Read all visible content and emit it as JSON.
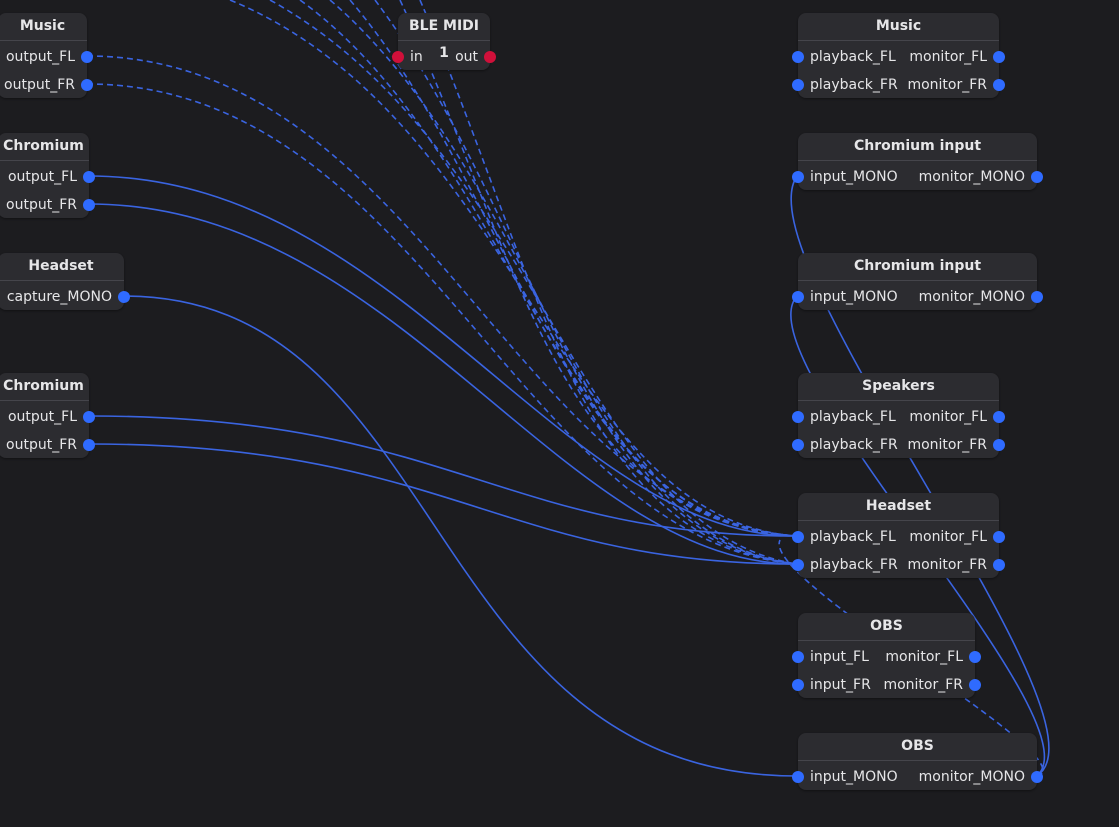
{
  "colors": {
    "background": "#1c1c1f",
    "node": "#2c2c30",
    "audio_port": "#2f6bff",
    "midi_port": "#d0103a",
    "wire": "#3a64e0"
  },
  "nodes": {
    "music_out": {
      "title": "Music",
      "ports": [
        "output_FL",
        "output_FR"
      ]
    },
    "chromium_out_1": {
      "title": "Chromium",
      "ports": [
        "output_FL",
        "output_FR"
      ]
    },
    "headset_out": {
      "title": "Headset",
      "ports": [
        "capture_MONO"
      ]
    },
    "chromium_out_2": {
      "title": "Chromium",
      "ports": [
        "output_FL",
        "output_FR"
      ]
    },
    "ble_midi": {
      "title": "BLE MIDI 1",
      "in_label": "in",
      "out_label": "out"
    },
    "music_sink": {
      "title": "Music",
      "rows": [
        [
          "playback_FL",
          "monitor_FL"
        ],
        [
          "playback_FR",
          "monitor_FR"
        ]
      ]
    },
    "chromium_input_1": {
      "title": "Chromium input",
      "rows": [
        [
          "input_MONO",
          "monitor_MONO"
        ]
      ]
    },
    "chromium_input_2": {
      "title": "Chromium input",
      "rows": [
        [
          "input_MONO",
          "monitor_MONO"
        ]
      ]
    },
    "speakers": {
      "title": "Speakers",
      "rows": [
        [
          "playback_FL",
          "monitor_FL"
        ],
        [
          "playback_FR",
          "monitor_FR"
        ]
      ]
    },
    "headset_sink": {
      "title": "Headset",
      "rows": [
        [
          "playback_FL",
          "monitor_FL"
        ],
        [
          "playback_FR",
          "monitor_FR"
        ]
      ]
    },
    "obs_stereo": {
      "title": "OBS",
      "rows": [
        [
          "input_FL",
          "monitor_FL"
        ],
        [
          "input_FR",
          "monitor_FR"
        ]
      ]
    },
    "obs_mono": {
      "title": "OBS",
      "rows": [
        [
          "input_MONO",
          "monitor_MONO"
        ]
      ]
    }
  }
}
